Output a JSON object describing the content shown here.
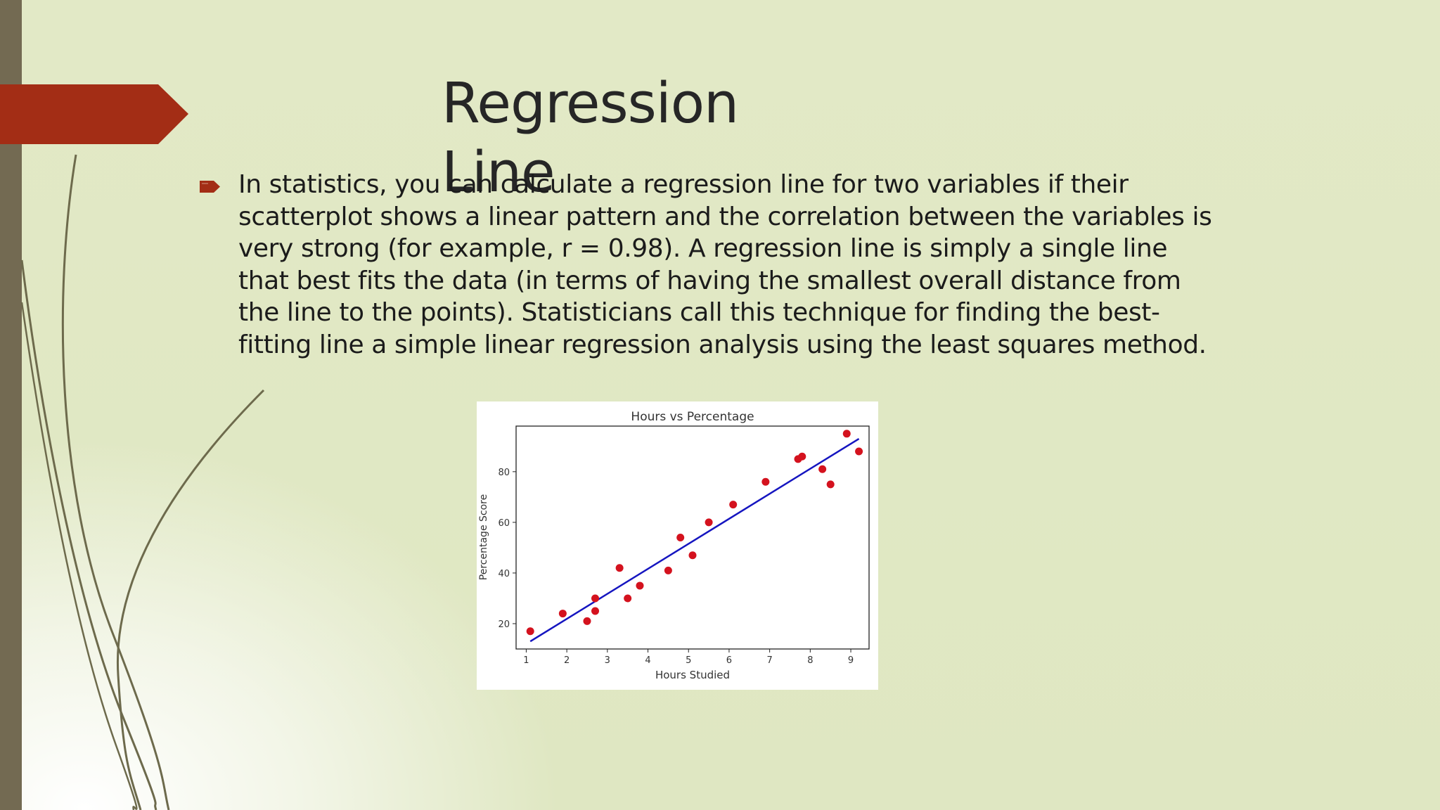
{
  "slide": {
    "title": "Regression Line",
    "bullet_text": "In statistics, you can calculate a regression line for two variables if their scatterplot  shows a linear pattern and the correlation between the variables is very strong  (for example, r = 0.98). A regression line is simply a single line that best fits the  data (in terms of having the smallest overall distance from the line to the points).  Statisticians call this technique for finding the best-fitting line a simple linear  regression analysis using the least squares method."
  },
  "colors": {
    "background": "#e0e8c4",
    "left_bar": "#736a52",
    "banner": "#a32d15",
    "bullet": "#a32d15",
    "point": "#d4121e",
    "line": "#1515c0"
  },
  "icons": {
    "bullet": "arrow-tag-bullet-icon"
  },
  "chart_data": {
    "type": "scatter",
    "title": "Hours vs Percentage",
    "xlabel": "Hours Studied",
    "ylabel": "Percentage Score",
    "xlim": [
      0.75,
      9.45
    ],
    "ylim": [
      10,
      98
    ],
    "xticks": [
      1,
      2,
      3,
      4,
      5,
      6,
      7,
      8,
      9
    ],
    "yticks": [
      20,
      40,
      60,
      80
    ],
    "grid": false,
    "legend": "none",
    "points": [
      {
        "x": 1.1,
        "y": 17
      },
      {
        "x": 1.9,
        "y": 24
      },
      {
        "x": 2.5,
        "y": 21
      },
      {
        "x": 2.7,
        "y": 25
      },
      {
        "x": 2.7,
        "y": 30
      },
      {
        "x": 3.3,
        "y": 42
      },
      {
        "x": 3.5,
        "y": 30
      },
      {
        "x": 3.8,
        "y": 35
      },
      {
        "x": 4.5,
        "y": 41
      },
      {
        "x": 4.8,
        "y": 54
      },
      {
        "x": 5.1,
        "y": 47
      },
      {
        "x": 5.5,
        "y": 60
      },
      {
        "x": 6.1,
        "y": 67
      },
      {
        "x": 6.9,
        "y": 76
      },
      {
        "x": 7.7,
        "y": 85
      },
      {
        "x": 7.8,
        "y": 86
      },
      {
        "x": 8.3,
        "y": 81
      },
      {
        "x": 8.5,
        "y": 75
      },
      {
        "x": 8.9,
        "y": 95
      },
      {
        "x": 9.2,
        "y": 88
      }
    ],
    "regression_line": {
      "x": [
        1.1,
        9.2
      ],
      "y": [
        13,
        93
      ]
    }
  }
}
